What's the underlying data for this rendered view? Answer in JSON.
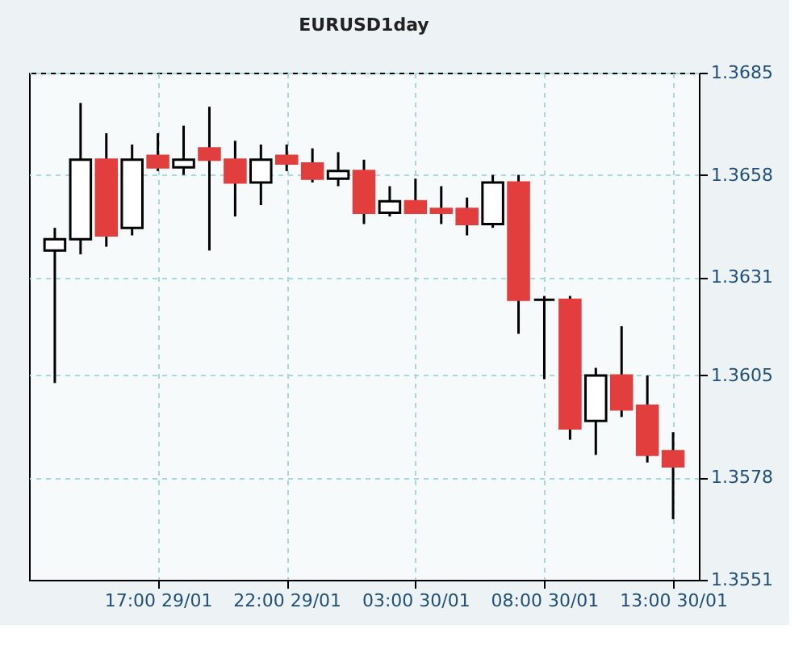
{
  "chart_data": {
    "type": "candlestick",
    "title": "EURUSD1day",
    "categories": [
      null,
      null,
      null,
      null,
      "17:00 29/01",
      null,
      null,
      null,
      null,
      "22:00 29/01",
      null,
      null,
      null,
      null,
      "03:00 30/01",
      null,
      null,
      null,
      null,
      "08:00 30/01",
      null,
      null,
      null,
      null,
      "13:00 30/01"
    ],
    "ohlc": [
      [
        1.3638,
        1.3644,
        1.3603,
        1.3641
      ],
      [
        1.3641,
        1.3677,
        1.3637,
        1.3662
      ],
      [
        1.3662,
        1.3669,
        1.3639,
        1.3642
      ],
      [
        1.3644,
        1.3666,
        1.3642,
        1.3662
      ],
      [
        1.3663,
        1.3669,
        1.3659,
        1.366
      ],
      [
        1.366,
        1.3671,
        1.3658,
        1.3662
      ],
      [
        1.3665,
        1.3676,
        1.3638,
        1.3662
      ],
      [
        1.3662,
        1.3667,
        1.3647,
        1.3656
      ],
      [
        1.3656,
        1.3666,
        1.365,
        1.3662
      ],
      [
        1.3663,
        1.3666,
        1.3659,
        1.3661
      ],
      [
        1.3661,
        1.3665,
        1.3656,
        1.3657
      ],
      [
        1.3657,
        1.3664,
        1.3655,
        1.3659
      ],
      [
        1.3659,
        1.3662,
        1.3645,
        1.3648
      ],
      [
        1.3648,
        1.3655,
        1.3647,
        1.3651
      ],
      [
        1.3651,
        1.3657,
        1.3648,
        1.3648
      ],
      [
        1.3649,
        1.3655,
        1.3645,
        1.3648
      ],
      [
        1.3649,
        1.3652,
        1.3642,
        1.3645
      ],
      [
        1.3645,
        1.3658,
        1.3644,
        1.3656
      ],
      [
        1.3656,
        1.3658,
        1.3616,
        1.3625
      ],
      [
        1.3625,
        1.3626,
        1.3604,
        1.3625
      ],
      [
        1.3625,
        1.3626,
        1.3588,
        1.3591
      ],
      [
        1.3593,
        1.3607,
        1.3584,
        1.3605
      ],
      [
        1.3605,
        1.3618,
        1.3594,
        1.3596
      ],
      [
        1.3597,
        1.3605,
        1.3582,
        1.3584
      ],
      [
        1.3585,
        1.359,
        1.3567,
        1.3581
      ]
    ],
    "colors": [
      "#ffffff",
      "#ffffff",
      "#e23e3e",
      "#ffffff",
      "#e23e3e",
      "#ffffff",
      "#e23e3e",
      "#e23e3e",
      "#ffffff",
      "#e23e3e",
      "#e23e3e",
      "#ffffff",
      "#e23e3e",
      "#ffffff",
      "#e23e3e",
      "#e23e3e",
      "#e23e3e",
      "#ffffff",
      "#e23e3e",
      "#000000",
      "#e23e3e",
      "#ffffff",
      "#e23e3e",
      "#e23e3e",
      "#e23e3e"
    ],
    "ylim": [
      1.3551,
      1.3685
    ],
    "yticks": [
      1.3551,
      1.3578,
      1.3605,
      1.3631,
      1.3658,
      1.3685
    ],
    "grid": true
  }
}
